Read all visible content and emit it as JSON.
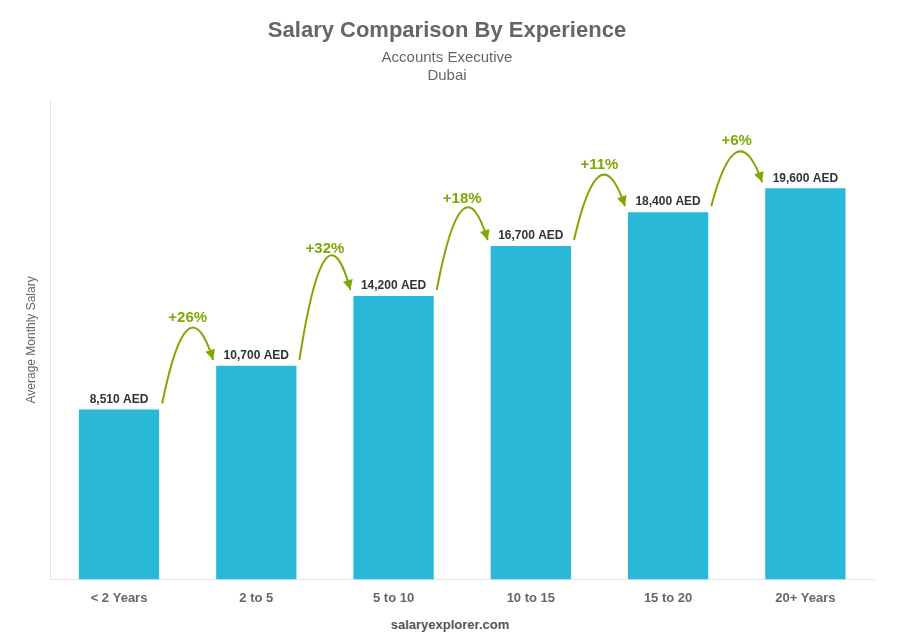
{
  "chart_data": {
    "type": "bar",
    "title": "Salary Comparison By Experience",
    "subtitle": "Accounts Executive",
    "location": "Dubai",
    "y_label": "Average Monthly Salary",
    "footer": "salaryexplorer.com",
    "categories": [
      "< 2 Years",
      "2 to 5",
      "5 to 10",
      "10 to 15",
      "15 to 20",
      "20+ Years"
    ],
    "values": [
      8510,
      10700,
      14200,
      16700,
      18400,
      19600
    ],
    "value_labels": [
      "8,510 AED",
      "10,700 AED",
      "14,200 AED",
      "16,700 AED",
      "18,400 AED",
      "19,600 AED"
    ],
    "data_labels": true,
    "annotations": [
      null,
      "+26%",
      "+32%",
      "+18%",
      "+11%",
      "+6%"
    ],
    "color": "#29b8d8",
    "ylim": [
      0,
      24000
    ],
    "grid": false,
    "tick_labels": "x"
  }
}
